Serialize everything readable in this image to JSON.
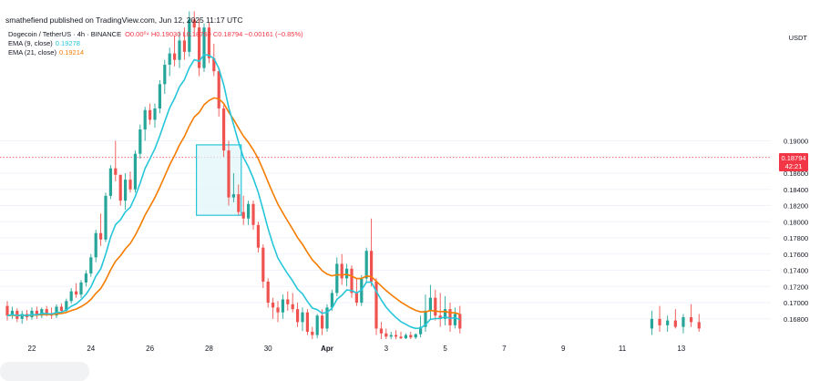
{
  "header": {
    "publish_line": "smathefiend published on TradingView.com, Jun 12, 2025 11:17 UTC",
    "symbol_line": "Dogecoin / TetherUS · 4h · BINANCE",
    "ohlc_text": "O0.00⁰⁴ H0.19030 L0.18760 C0.18794 −0.00161 (−0.85%)",
    "ema9_label": "EMA (9, close)",
    "ema9_value": "0.19278",
    "ema21_label": "EMA (21, close)",
    "ema21_value": "0.19214",
    "currency": "USDT"
  },
  "price_badge": {
    "price": "0.18794",
    "countdown": "42:21"
  },
  "colors": {
    "up": "#26a69a",
    "down": "#ef5350",
    "ema9": "#26c6da",
    "ema21": "#f57c00",
    "highlight_fill": "#e0f7fa",
    "highlight_stroke": "#26c6da",
    "price_line": "#f23645"
  },
  "chart_data": {
    "type": "candlestick",
    "title": "Dogecoin / TetherUS · 4h · BINANCE",
    "timeframe": "4h",
    "last_price": 0.18794,
    "ylim": [
      0.1655,
      0.2065
    ],
    "y_ticks": [
      "0.19000",
      "0.18600",
      "0.18400",
      "0.18200",
      "0.18000",
      "0.17800",
      "0.17600",
      "0.17400",
      "0.17200",
      "0.17000",
      "0.16800"
    ],
    "y_tick_values": [
      0.19,
      0.186,
      0.184,
      0.182,
      0.18,
      0.178,
      0.176,
      0.174,
      0.172,
      0.17,
      0.168
    ],
    "x_ticks": [
      "22",
      "24",
      "26",
      "28",
      "30",
      "Apr",
      "3",
      "5",
      "7",
      "9",
      "11",
      "13"
    ],
    "x_tick_bar_index": [
      5,
      17,
      29,
      41,
      53,
      65,
      77,
      89,
      101,
      113,
      125,
      137
    ],
    "series": [
      {
        "name": "Dogecoin / TetherUS",
        "candles": [
          [
            0.1696,
            0.1702,
            0.1678,
            0.1684
          ],
          [
            0.1684,
            0.1695,
            0.168,
            0.169
          ],
          [
            0.169,
            0.1693,
            0.1676,
            0.168
          ],
          [
            0.168,
            0.169,
            0.1674,
            0.1686
          ],
          [
            0.1686,
            0.1691,
            0.1678,
            0.1682
          ],
          [
            0.1682,
            0.1694,
            0.1679,
            0.169
          ],
          [
            0.169,
            0.1695,
            0.168,
            0.1684
          ],
          [
            0.1684,
            0.1694,
            0.1681,
            0.1692
          ],
          [
            0.1692,
            0.1696,
            0.1683,
            0.1687
          ],
          [
            0.1687,
            0.1694,
            0.168,
            0.1684
          ],
          [
            0.1684,
            0.1698,
            0.1681,
            0.1695
          ],
          [
            0.1695,
            0.1699,
            0.1686,
            0.169
          ],
          [
            0.169,
            0.1705,
            0.1687,
            0.1702
          ],
          [
            0.1702,
            0.1718,
            0.1699,
            0.1714
          ],
          [
            0.1714,
            0.1724,
            0.1706,
            0.171
          ],
          [
            0.171,
            0.1728,
            0.1706,
            0.1725
          ],
          [
            0.1725,
            0.174,
            0.172,
            0.1736
          ],
          [
            0.1736,
            0.176,
            0.1732,
            0.1756
          ],
          [
            0.1756,
            0.179,
            0.175,
            0.1786
          ],
          [
            0.1786,
            0.181,
            0.177,
            0.1778
          ],
          [
            0.1778,
            0.1836,
            0.1775,
            0.1832
          ],
          [
            0.1832,
            0.187,
            0.1828,
            0.1866
          ],
          [
            0.1866,
            0.19,
            0.185,
            0.1858
          ],
          [
            0.1858,
            0.1858,
            0.182,
            0.1826
          ],
          [
            0.1826,
            0.186,
            0.1815,
            0.1852
          ],
          [
            0.1852,
            0.1862,
            0.1836,
            0.184
          ],
          [
            0.184,
            0.1888,
            0.1836,
            0.1884
          ],
          [
            0.1884,
            0.192,
            0.1878,
            0.1914
          ],
          [
            0.1914,
            0.1942,
            0.19,
            0.1938
          ],
          [
            0.1938,
            0.1946,
            0.192,
            0.1926
          ],
          [
            0.1926,
            0.1946,
            0.1916,
            0.194
          ],
          [
            0.194,
            0.1975,
            0.1934,
            0.197
          ],
          [
            0.197,
            0.2,
            0.1958,
            0.1994
          ],
          [
            0.1994,
            0.2015,
            0.198,
            0.2008
          ],
          [
            0.2008,
            0.203,
            0.1992,
            0.2
          ],
          [
            0.2,
            0.2035,
            0.199,
            0.2024
          ],
          [
            0.2024,
            0.204,
            0.2,
            0.201
          ],
          [
            0.201,
            0.206,
            0.2004,
            0.205
          ],
          [
            0.205,
            0.206,
            0.203,
            0.204
          ],
          [
            0.204,
            0.205,
            0.198,
            0.199
          ],
          [
            0.199,
            0.2045,
            0.1985,
            0.204
          ],
          [
            0.204,
            0.2046,
            0.1996,
            0.2002
          ],
          [
            0.2002,
            0.202,
            0.198,
            0.1986
          ],
          [
            0.1986,
            0.199,
            0.193,
            0.194
          ],
          [
            0.194,
            0.1944,
            0.188,
            0.1888
          ],
          [
            0.1888,
            0.19,
            0.182,
            0.183
          ],
          [
            0.183,
            0.186,
            0.1824,
            0.1834
          ],
          [
            0.1834,
            0.1846,
            0.1808,
            0.1812
          ],
          [
            0.1812,
            0.1832,
            0.1796,
            0.1804
          ],
          [
            0.1804,
            0.1826,
            0.1796,
            0.1822
          ],
          [
            0.1822,
            0.1826,
            0.179,
            0.1796
          ],
          [
            0.1796,
            0.18,
            0.1762,
            0.1768
          ],
          [
            0.1768,
            0.1772,
            0.1718,
            0.1726
          ],
          [
            0.1726,
            0.173,
            0.1694,
            0.17
          ],
          [
            0.17,
            0.1706,
            0.168,
            0.1694
          ],
          [
            0.1694,
            0.1702,
            0.1676,
            0.1688
          ],
          [
            0.1688,
            0.171,
            0.168,
            0.1704
          ],
          [
            0.1704,
            0.1714,
            0.169,
            0.1698
          ],
          [
            0.1698,
            0.1712,
            0.1688,
            0.1692
          ],
          [
            0.1692,
            0.17,
            0.167,
            0.1676
          ],
          [
            0.1676,
            0.1694,
            0.1665,
            0.1688
          ],
          [
            0.1688,
            0.1692,
            0.166,
            0.1664
          ],
          [
            0.1664,
            0.167,
            0.1655,
            0.166
          ],
          [
            0.166,
            0.1686,
            0.1656,
            0.1684
          ],
          [
            0.1684,
            0.1692,
            0.166,
            0.1668
          ],
          [
            0.1668,
            0.1698,
            0.1664,
            0.1694
          ],
          [
            0.1694,
            0.1716,
            0.169,
            0.1712
          ],
          [
            0.1712,
            0.1756,
            0.1708,
            0.1748
          ],
          [
            0.1748,
            0.176,
            0.1722,
            0.173
          ],
          [
            0.173,
            0.1748,
            0.172,
            0.1742
          ],
          [
            0.1742,
            0.1746,
            0.1706,
            0.1712
          ],
          [
            0.1712,
            0.173,
            0.1696,
            0.17
          ],
          [
            0.17,
            0.1734,
            0.1696,
            0.173
          ],
          [
            0.173,
            0.1768,
            0.1724,
            0.1764
          ],
          [
            0.1764,
            0.1804,
            0.172,
            0.1726
          ],
          [
            0.1726,
            0.173,
            0.166,
            0.1668
          ],
          [
            0.1668,
            0.1676,
            0.1655,
            0.1662
          ],
          [
            0.1662,
            0.1668,
            0.1655,
            0.1658
          ],
          [
            0.1658,
            0.1664,
            0.1655,
            0.166
          ],
          [
            0.166,
            0.1666,
            0.1655,
            0.1658
          ],
          [
            0.1658,
            0.1664,
            0.1655,
            0.1656
          ],
          [
            0.1656,
            0.1662,
            0.1655,
            0.166
          ],
          [
            0.166,
            0.1664,
            0.1655,
            0.1657
          ],
          [
            0.1657,
            0.1662,
            0.1655,
            0.1661
          ],
          [
            0.1661,
            0.1684,
            0.1657,
            0.167
          ],
          [
            0.167,
            0.171,
            0.1664,
            0.169
          ],
          [
            0.169,
            0.1722,
            0.168,
            0.1706
          ],
          [
            0.1706,
            0.1716,
            0.1678,
            0.1684
          ],
          [
            0.1684,
            0.1712,
            0.167,
            0.168
          ],
          [
            0.168,
            0.1708,
            0.1672,
            0.1692
          ],
          [
            0.1692,
            0.17,
            0.1664,
            0.1672
          ],
          [
            0.1672,
            0.1694,
            0.1668,
            0.1686
          ],
          [
            0.1686,
            0.1696,
            0.1662,
            0.1668
          ]
        ],
        "trailing_bars": [
          [
            0.1668,
            0.169,
            0.166,
            0.168
          ],
          [
            0.168,
            0.1696,
            0.1664,
            0.1672
          ],
          [
            0.1672,
            0.1684,
            0.1664,
            0.1678
          ],
          [
            0.1678,
            0.1692,
            0.1668,
            0.167
          ],
          [
            0.167,
            0.1686,
            0.1662,
            0.1682
          ],
          [
            0.1682,
            0.1698,
            0.167,
            0.1676
          ],
          [
            0.1676,
            0.1686,
            0.1664,
            0.1668
          ]
        ]
      },
      {
        "name": "EMA (9, close)",
        "last": 0.19278
      },
      {
        "name": "EMA (21, close)",
        "last": 0.19214
      }
    ],
    "highlight_box": {
      "bar_from": 39,
      "bar_to": 47,
      "price_top": 0.1895,
      "price_bottom": 0.1808
    },
    "price_line": 0.18794
  }
}
